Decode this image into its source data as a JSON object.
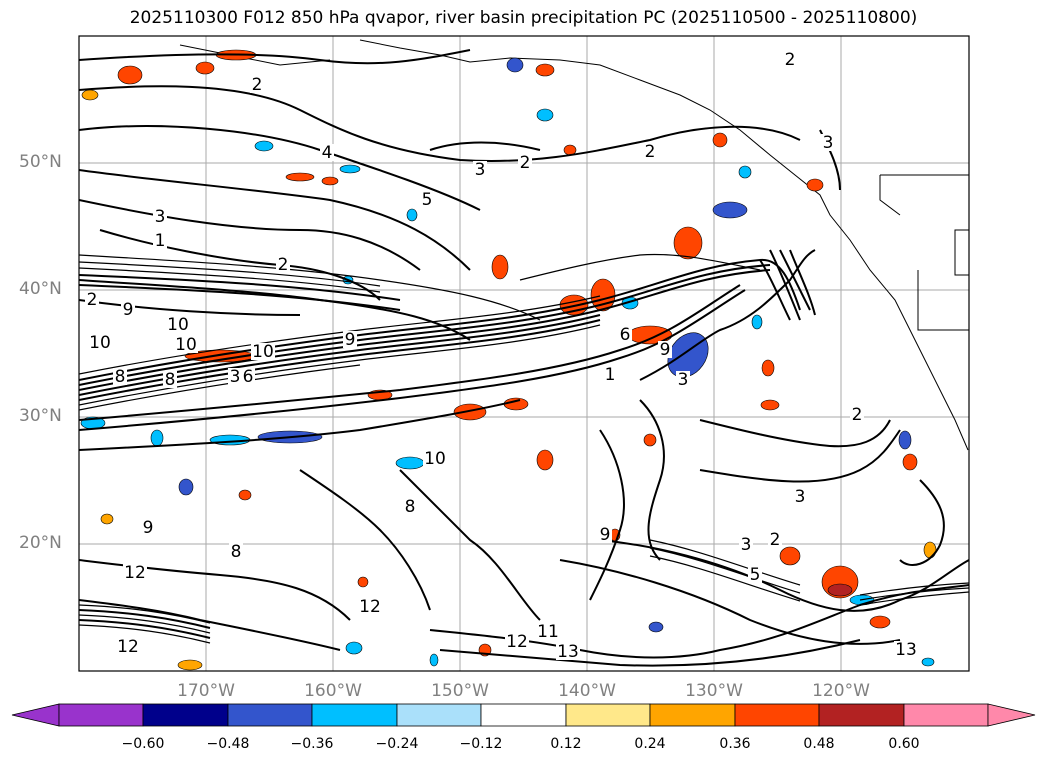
{
  "title": "2025110300 F012 850 hPa qvapor, river basin precipitation PC (2025110500 - 2025110800)",
  "axes": {
    "lat_labels": [
      "50°N",
      "40°N",
      "30°N",
      "20°N"
    ],
    "lon_labels": [
      "170°W",
      "160°W",
      "150°W",
      "140°W",
      "130°W",
      "120°W"
    ]
  },
  "colorbar": {
    "ticks": [
      "−0.60",
      "−0.48",
      "−0.36",
      "−0.24",
      "−0.12",
      "0.12",
      "0.24",
      "0.36",
      "0.48",
      "0.60"
    ],
    "colors": [
      "#9933cc",
      "#00008b",
      "#3355cc",
      "#00bfff",
      "#aae0fa",
      "#ffffff",
      "#ffe88a",
      "#ffa500",
      "#ff4500",
      "#b22222",
      "#ff88aa",
      "#ff88aa"
    ]
  },
  "contour_labels": [
    "2",
    "2",
    "2",
    "2",
    "4",
    "3",
    "2",
    "3",
    "5",
    "3",
    "1",
    "2",
    "9",
    "10",
    "10",
    "10",
    "10",
    "9",
    "8",
    "3",
    "8",
    "6",
    "1",
    "6",
    "9",
    "3",
    "10",
    "8",
    "3",
    "9",
    "8",
    "9",
    "12",
    "12",
    "12",
    "11",
    "13",
    "12",
    "13",
    "2",
    "3",
    "5",
    "2"
  ]
}
